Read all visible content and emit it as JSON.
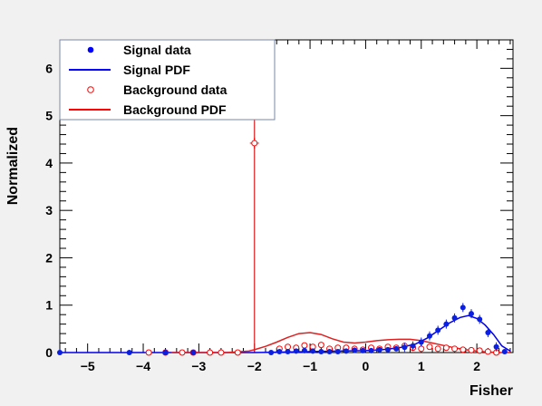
{
  "chart_data": {
    "type": "scatter",
    "xlabel": "Fisher",
    "ylabel": "Normalized",
    "xlim": [
      -5.5,
      2.65
    ],
    "ylim": [
      0,
      6.6
    ],
    "x_ticks": [
      -5,
      -4,
      -3,
      -2,
      -1,
      0,
      1,
      2
    ],
    "x_tick_labels": [
      "−5",
      "−4",
      "−3",
      "−2",
      "−1",
      "0",
      "1",
      "2"
    ],
    "y_ticks": [
      0,
      1,
      2,
      3,
      4,
      5,
      6
    ],
    "y_tick_labels": [
      "0",
      "1",
      "2",
      "3",
      "4",
      "5",
      "6"
    ],
    "legend_position": "top-left",
    "legend": [
      {
        "label": "Signal data",
        "kind": "marker-filled",
        "color": "#0000ff"
      },
      {
        "label": "Signal PDF",
        "kind": "line",
        "color": "#0000ff"
      },
      {
        "label": "Background data",
        "kind": "marker-open",
        "color": "#ff0000"
      },
      {
        "label": "Background PDF",
        "kind": "line",
        "color": "#ff0000"
      }
    ],
    "series": [
      {
        "kind": "points-filled",
        "color": "#0a1fe0",
        "x": [
          -5.5,
          -4.25,
          -3.6,
          -3.1,
          -1.7,
          -1.55,
          -1.4,
          -1.25,
          -1.1,
          -0.95,
          -0.8,
          -0.65,
          -0.5,
          -0.35,
          -0.2,
          -0.05,
          0.1,
          0.25,
          0.4,
          0.55,
          0.7,
          0.85,
          1.0,
          1.15,
          1.3,
          1.45,
          1.6,
          1.75,
          1.9,
          2.05,
          2.2,
          2.35,
          2.5
        ],
        "y": [
          0.0,
          0.0,
          0.0,
          0.0,
          0.0,
          0.02,
          0.02,
          0.03,
          0.04,
          0.03,
          0.02,
          0.02,
          0.02,
          0.03,
          0.05,
          0.04,
          0.04,
          0.06,
          0.06,
          0.08,
          0.11,
          0.14,
          0.22,
          0.35,
          0.47,
          0.6,
          0.73,
          0.95,
          0.82,
          0.7,
          0.42,
          0.12,
          0.02
        ]
      },
      {
        "kind": "curve",
        "color": "#0000ee",
        "x": [
          -5.5,
          -2.0,
          -1.5,
          -1.0,
          -0.5,
          0.0,
          0.3,
          0.6,
          0.9,
          1.1,
          1.3,
          1.5,
          1.7,
          1.85,
          2.0,
          2.15,
          2.3,
          2.45,
          2.6
        ],
        "y": [
          0.0,
          0.0,
          0.01,
          0.02,
          0.03,
          0.04,
          0.06,
          0.1,
          0.18,
          0.3,
          0.46,
          0.62,
          0.74,
          0.78,
          0.72,
          0.58,
          0.38,
          0.14,
          0.03
        ]
      },
      {
        "kind": "points-open",
        "color": "#ff0000",
        "x": [
          -3.9,
          -3.6,
          -3.3,
          -3.1,
          -2.8,
          -2.6,
          -2.3,
          -2.0,
          -1.55,
          -1.4,
          -1.25,
          -1.1,
          -0.95,
          -0.8,
          -0.65,
          -0.5,
          -0.35,
          -0.2,
          -0.05,
          0.1,
          0.25,
          0.4,
          0.55,
          0.7,
          0.85,
          1.0,
          1.15,
          1.3,
          1.45,
          1.6,
          1.75,
          1.9,
          2.05,
          2.2,
          2.35
        ],
        "y": [
          0.0,
          0.0,
          0.0,
          0.0,
          0.0,
          0.0,
          0.0,
          4.42,
          0.08,
          0.12,
          0.1,
          0.15,
          0.12,
          0.16,
          0.08,
          0.1,
          0.1,
          0.08,
          0.06,
          0.1,
          0.08,
          0.12,
          0.1,
          0.14,
          0.1,
          0.08,
          0.12,
          0.08,
          0.1,
          0.08,
          0.06,
          0.05,
          0.04,
          0.02,
          0.0
        ]
      },
      {
        "kind": "curve",
        "color": "#e02020",
        "x": [
          -3.5,
          -2.5,
          -2.1,
          -2.0,
          -1.8,
          -1.6,
          -1.4,
          -1.2,
          -1.0,
          -0.8,
          -0.6,
          -0.4,
          -0.2,
          0.0,
          0.2,
          0.4,
          0.6,
          0.8,
          1.0,
          1.2,
          1.4,
          1.6,
          1.8,
          2.0,
          2.2,
          2.4,
          2.6
        ],
        "y": [
          0.0,
          0.0,
          0.03,
          0.06,
          0.13,
          0.22,
          0.32,
          0.4,
          0.42,
          0.38,
          0.29,
          0.22,
          0.2,
          0.22,
          0.25,
          0.27,
          0.28,
          0.28,
          0.25,
          0.2,
          0.15,
          0.1,
          0.06,
          0.03,
          0.01,
          0.0,
          0.0
        ]
      }
    ],
    "spike": {
      "x": -2.0,
      "y": 6.6,
      "color": "#e02020"
    }
  }
}
